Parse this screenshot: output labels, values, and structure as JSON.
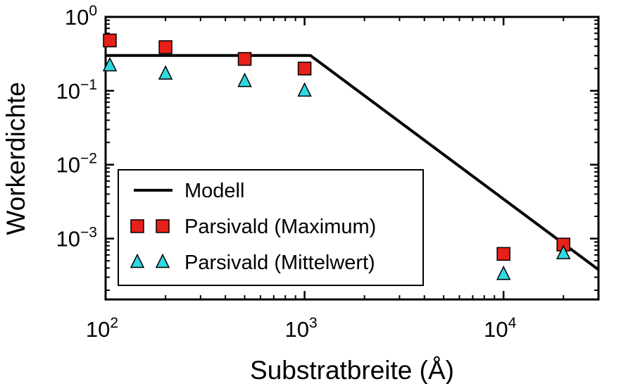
{
  "chart_data": {
    "type": "scatter",
    "xlabel": "Substratbreite (Å)",
    "ylabel": "Workerdichte",
    "x_scale": "log",
    "y_scale": "log",
    "xlim": [
      100,
      30000
    ],
    "ylim": [
      0.00015,
      1
    ],
    "grid": false,
    "legend_position": "lower-left",
    "x_ticks": [
      {
        "value": 100,
        "base": "10",
        "exp": "2"
      },
      {
        "value": 1000,
        "base": "10",
        "exp": "3"
      },
      {
        "value": 10000,
        "base": "10",
        "exp": "4"
      }
    ],
    "y_ticks": [
      {
        "value": 1,
        "base": "10",
        "exp": "0"
      },
      {
        "value": 0.1,
        "base": "10",
        "exp": "−1"
      },
      {
        "value": 0.01,
        "base": "10",
        "exp": "−2"
      },
      {
        "value": 0.001,
        "base": "10",
        "exp": "−3"
      }
    ],
    "series": [
      {
        "name": "Modell",
        "kind": "line",
        "color": "#000000",
        "points": [
          [
            100,
            0.3
          ],
          [
            1070,
            0.3
          ],
          [
            30000,
            0.00038
          ]
        ]
      },
      {
        "name": "Parsivald (Maximum)",
        "kind": "marker",
        "marker": "square",
        "color": "#e8201a",
        "points": [
          [
            105,
            0.48
          ],
          [
            200,
            0.39
          ],
          [
            500,
            0.27
          ],
          [
            1000,
            0.2
          ],
          [
            10000,
            0.00062
          ],
          [
            20000,
            0.00083
          ]
        ]
      },
      {
        "name": "Parsivald (Mittelwert)",
        "kind": "marker",
        "marker": "triangle",
        "color": "#2fd8e0",
        "points": [
          [
            105,
            0.22
          ],
          [
            200,
            0.17
          ],
          [
            500,
            0.135
          ],
          [
            1000,
            0.1
          ],
          [
            10000,
            0.00033
          ],
          [
            20000,
            0.00063
          ]
        ]
      }
    ]
  }
}
